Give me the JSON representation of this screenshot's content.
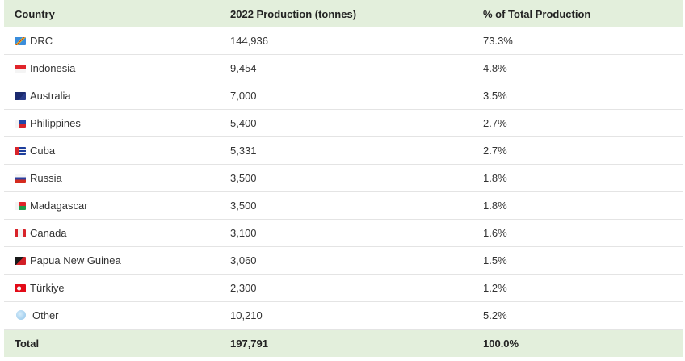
{
  "table": {
    "header": [
      "Country",
      "2022 Production (tonnes)",
      "% of Total Production"
    ],
    "rows": [
      [
        "DRC",
        "144,936",
        "73.3%"
      ],
      [
        "Indonesia",
        "9,454",
        "4.8%"
      ],
      [
        "Australia",
        "7,000",
        "3.5%"
      ],
      [
        "Philippines",
        "5,400",
        "2.7%"
      ],
      [
        "Cuba",
        "5,331",
        "2.7%"
      ],
      [
        "Russia",
        "3,500",
        "1.8%"
      ],
      [
        "Madagascar",
        "3,500",
        "1.8%"
      ],
      [
        "Canada",
        "3,100",
        "1.6%"
      ],
      [
        "Papua New Guinea",
        "3,060",
        "1.5%"
      ],
      [
        "Türkiye",
        "2,300",
        "1.2%"
      ],
      [
        "Other",
        "10,210",
        "5.2%"
      ]
    ],
    "total": [
      "Total",
      "197,791",
      "100.0%"
    ]
  }
}
